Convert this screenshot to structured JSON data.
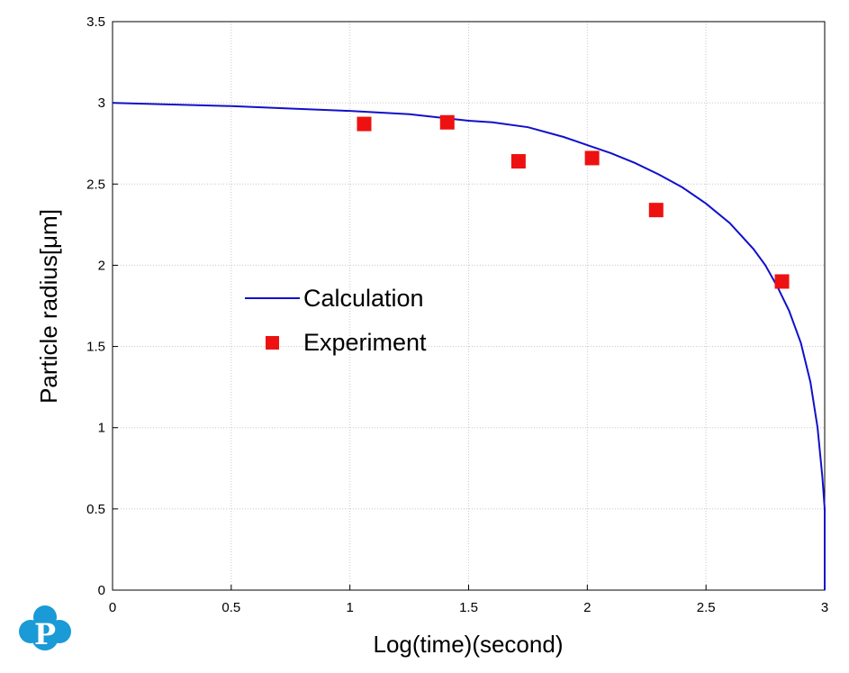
{
  "chart_data": {
    "type": "line",
    "xlabel": "Log(time)(second)",
    "ylabel": "Particle radius[μm]",
    "xlim": [
      0,
      3
    ],
    "ylim": [
      0,
      3.5
    ],
    "x_ticks": [
      "0",
      "0.5",
      "1",
      "1.5",
      "2",
      "2.5",
      "3"
    ],
    "y_ticks": [
      "0",
      "0.5",
      "1",
      "1.5",
      "2",
      "2.5",
      "3",
      "3.5"
    ],
    "grid": true,
    "legend_position": "center-left",
    "series": [
      {
        "name": "Calculation",
        "kind": "line",
        "color": "#1010cc",
        "x": [
          0,
          0.25,
          0.5,
          0.75,
          1.0,
          1.25,
          1.5,
          1.6,
          1.75,
          1.9,
          2.0,
          2.1,
          2.2,
          2.3,
          2.4,
          2.5,
          2.6,
          2.7,
          2.75,
          2.8,
          2.85,
          2.9,
          2.94,
          2.97,
          2.99,
          3.0,
          3.0
        ],
        "y": [
          3.0,
          2.99,
          2.98,
          2.965,
          2.95,
          2.93,
          2.89,
          2.88,
          2.85,
          2.79,
          2.74,
          2.69,
          2.63,
          2.56,
          2.48,
          2.38,
          2.26,
          2.1,
          2.0,
          1.87,
          1.72,
          1.52,
          1.28,
          1.0,
          0.7,
          0.5,
          0.0
        ]
      },
      {
        "name": "Experiment",
        "kind": "scatter",
        "color": "#ee1111",
        "marker": "square",
        "x": [
          1.06,
          1.41,
          1.71,
          2.02,
          2.29,
          2.82
        ],
        "y": [
          2.87,
          2.88,
          2.64,
          2.66,
          2.34,
          1.9
        ]
      }
    ]
  },
  "logo": {
    "name": "logo-p-icon",
    "color": "#1a9ad6",
    "letter": "P"
  }
}
